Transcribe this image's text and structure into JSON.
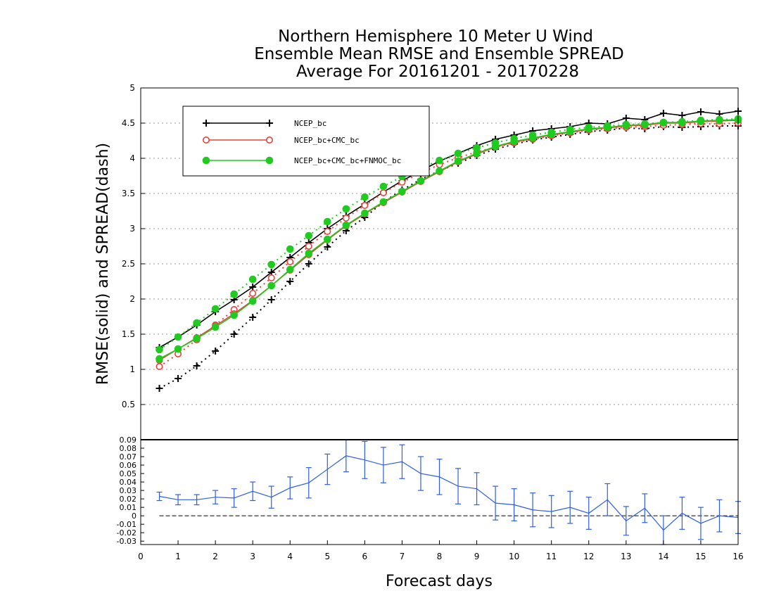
{
  "titles": [
    "Northern Hemisphere 10 Meter U Wind",
    "Ensemble Mean RMSE and Ensemble SPREAD",
    "Average For 20161201 - 20170228"
  ],
  "colors": {
    "NCEP_bc": "#000000",
    "NCEP_bc+CMC_bc": "#e8413c",
    "NCEP_bc+CMC_bc+FNMOC_bc": "#1ecb1e",
    "difference": "#2f5fe0"
  },
  "chart_data": [
    {
      "type": "line",
      "ylabel": "RMSE(solid)  and  SPREAD(dash)",
      "xlabel": "Forecast days",
      "xlim": [
        0,
        16
      ],
      "ylim": [
        0,
        5
      ],
      "x_ticks": [
        0,
        1,
        2,
        3,
        4,
        5,
        6,
        7,
        8,
        9,
        10,
        11,
        12,
        13,
        14,
        15,
        16
      ],
      "y_ticks": [
        "0.5",
        "1",
        "1.5",
        "2",
        "2.5",
        "3",
        "3.5",
        "4",
        "4.5",
        "5"
      ],
      "grid": true,
      "legend_position": "top-left",
      "x": [
        0.5,
        1,
        1.5,
        2,
        2.5,
        3,
        3.5,
        4,
        4.5,
        5,
        5.5,
        6,
        6.5,
        7,
        7.5,
        8,
        8.5,
        9,
        9.5,
        10,
        10.5,
        11,
        11.5,
        12,
        12.5,
        13,
        13.5,
        14,
        14.5,
        15,
        15.5,
        16
      ],
      "series": [
        {
          "name": "NCEP_bc",
          "marker": "+",
          "rmse": [
            1.31,
            1.46,
            1.63,
            1.82,
            1.99,
            2.17,
            2.38,
            2.59,
            2.8,
            3.0,
            3.18,
            3.35,
            3.52,
            3.68,
            3.82,
            3.96,
            4.07,
            4.18,
            4.27,
            4.33,
            4.39,
            4.42,
            4.45,
            4.5,
            4.49,
            4.57,
            4.55,
            4.64,
            4.61,
            4.66,
            4.63,
            4.67
          ],
          "spread": [
            0.73,
            0.87,
            1.05,
            1.26,
            1.5,
            1.74,
            1.99,
            2.25,
            2.5,
            2.74,
            2.97,
            3.16,
            3.38,
            3.55,
            3.7,
            3.82,
            3.93,
            4.04,
            4.13,
            4.2,
            4.26,
            4.3,
            4.34,
            4.38,
            4.4,
            4.43,
            4.42,
            4.45,
            4.44,
            4.45,
            4.46,
            4.46
          ]
        },
        {
          "name": "NCEP_bc+CMC_bc",
          "marker": "o",
          "rmse": [
            1.13,
            1.29,
            1.45,
            1.62,
            1.79,
            1.98,
            2.19,
            2.41,
            2.63,
            2.84,
            3.04,
            3.21,
            3.37,
            3.52,
            3.67,
            3.81,
            3.95,
            4.06,
            4.16,
            4.23,
            4.28,
            4.33,
            4.37,
            4.41,
            4.43,
            4.46,
            4.47,
            4.5,
            4.5,
            4.52,
            4.53,
            4.54
          ],
          "spread": [
            1.04,
            1.22,
            1.42,
            1.63,
            1.85,
            2.08,
            2.3,
            2.53,
            2.75,
            2.96,
            3.15,
            3.33,
            3.51,
            3.66,
            3.79,
            3.91,
            4.01,
            4.09,
            4.16,
            4.22,
            4.27,
            4.32,
            4.36,
            4.4,
            4.42,
            4.44,
            4.45,
            4.47,
            4.48,
            4.49,
            4.49,
            4.5
          ]
        },
        {
          "name": "NCEP_bc+CMC_bc+FNMOC_bc",
          "marker": "filled-circle",
          "rmse": [
            1.15,
            1.29,
            1.44,
            1.6,
            1.77,
            1.97,
            2.19,
            2.42,
            2.65,
            2.85,
            3.05,
            3.22,
            3.38,
            3.53,
            3.68,
            3.82,
            3.96,
            4.07,
            4.17,
            4.24,
            4.29,
            4.34,
            4.38,
            4.42,
            4.44,
            4.47,
            4.48,
            4.51,
            4.51,
            4.53,
            4.54,
            4.55
          ],
          "spread": [
            1.28,
            1.46,
            1.66,
            1.86,
            2.07,
            2.28,
            2.49,
            2.71,
            2.9,
            3.1,
            3.28,
            3.45,
            3.6,
            3.74,
            3.86,
            3.97,
            4.07,
            4.15,
            4.22,
            4.28,
            4.33,
            4.37,
            4.41,
            4.44,
            4.46,
            4.48,
            4.49,
            4.51,
            4.52,
            4.54,
            4.55,
            4.56
          ]
        }
      ]
    },
    {
      "type": "line",
      "xlabel": "Forecast days",
      "xlim": [
        0,
        16
      ],
      "ylim": [
        -0.034,
        0.09
      ],
      "y_ticks": [
        "-0.03",
        "-0.02",
        "-0.01",
        "0",
        "0.01",
        "0.02",
        "0.03",
        "0.04",
        "0.05",
        "0.06",
        "0.07",
        "0.08",
        "0.09"
      ],
      "x": [
        0.5,
        1,
        1.5,
        2,
        2.5,
        3,
        3.5,
        4,
        4.5,
        5,
        5.5,
        6,
        6.5,
        7,
        7.5,
        8,
        8.5,
        9,
        9.5,
        10,
        10.5,
        11,
        11.5,
        12,
        12.5,
        13,
        13.5,
        14,
        14.5,
        15,
        15.5,
        16
      ],
      "series": [
        {
          "values": [
            0.023,
            0.019,
            0.019,
            0.022,
            0.021,
            0.029,
            0.022,
            0.033,
            0.039,
            0.055,
            0.071,
            0.066,
            0.06,
            0.064,
            0.05,
            0.046,
            0.035,
            0.032,
            0.015,
            0.013,
            0.007,
            0.005,
            0.01,
            0.003,
            0.019,
            -0.006,
            0.009,
            -0.017,
            0.003,
            -0.009,
            0.0,
            -0.002
          ],
          "error": [
            0.005,
            0.006,
            0.006,
            0.008,
            0.011,
            0.011,
            0.013,
            0.013,
            0.018,
            0.018,
            0.019,
            0.022,
            0.021,
            0.02,
            0.02,
            0.021,
            0.021,
            0.019,
            0.02,
            0.019,
            0.02,
            0.019,
            0.019,
            0.019,
            0.019,
            0.017,
            0.017,
            0.017,
            0.019,
            0.019,
            0.019,
            0.019
          ]
        }
      ]
    }
  ]
}
